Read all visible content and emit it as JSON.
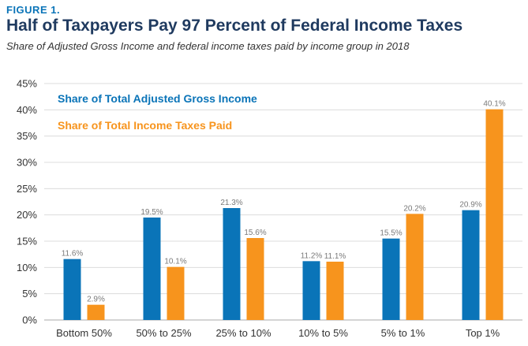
{
  "header": {
    "figure_label": "FIGURE 1.",
    "title": "Half of Taxpayers Pay 97 Percent of Federal Income Taxes",
    "subtitle": "Share of Adjusted Gross Income and federal income taxes paid by income group in 2018"
  },
  "colors": {
    "agi": "#0a74b8",
    "tax": "#f7941d",
    "grid": "#dcdcdc"
  },
  "chart_data": {
    "type": "bar",
    "title": "Half of Taxpayers Pay 97 Percent of Federal Income Taxes",
    "subtitle": "Share of Adjusted Gross Income and federal income taxes paid by income group in 2018",
    "xlabel": "",
    "ylabel": "",
    "ylim": [
      0,
      45
    ],
    "yticks": [
      "0%",
      "5%",
      "10%",
      "15%",
      "20%",
      "25%",
      "30%",
      "35%",
      "40%",
      "45%"
    ],
    "grid": true,
    "legend_position": "top-left",
    "categories": [
      "Bottom 50%",
      "50% to 25%",
      "25% to 10%",
      "10% to 5%",
      "5% to 1%",
      "Top 1%"
    ],
    "series": [
      {
        "name": "Share of Total Adjusted Gross Income",
        "values": [
          11.6,
          19.5,
          21.3,
          11.2,
          15.5,
          20.9
        ],
        "labels": [
          "11.6%",
          "19.5%",
          "21.3%",
          "11.2%",
          "15.5%",
          "20.9%"
        ]
      },
      {
        "name": "Share of Total Income Taxes Paid",
        "values": [
          2.9,
          10.1,
          15.6,
          11.1,
          20.2,
          40.1
        ],
        "labels": [
          "2.9%",
          "10.1%",
          "15.6%",
          "11.1%",
          "20.2%",
          "40.1%"
        ]
      }
    ]
  }
}
